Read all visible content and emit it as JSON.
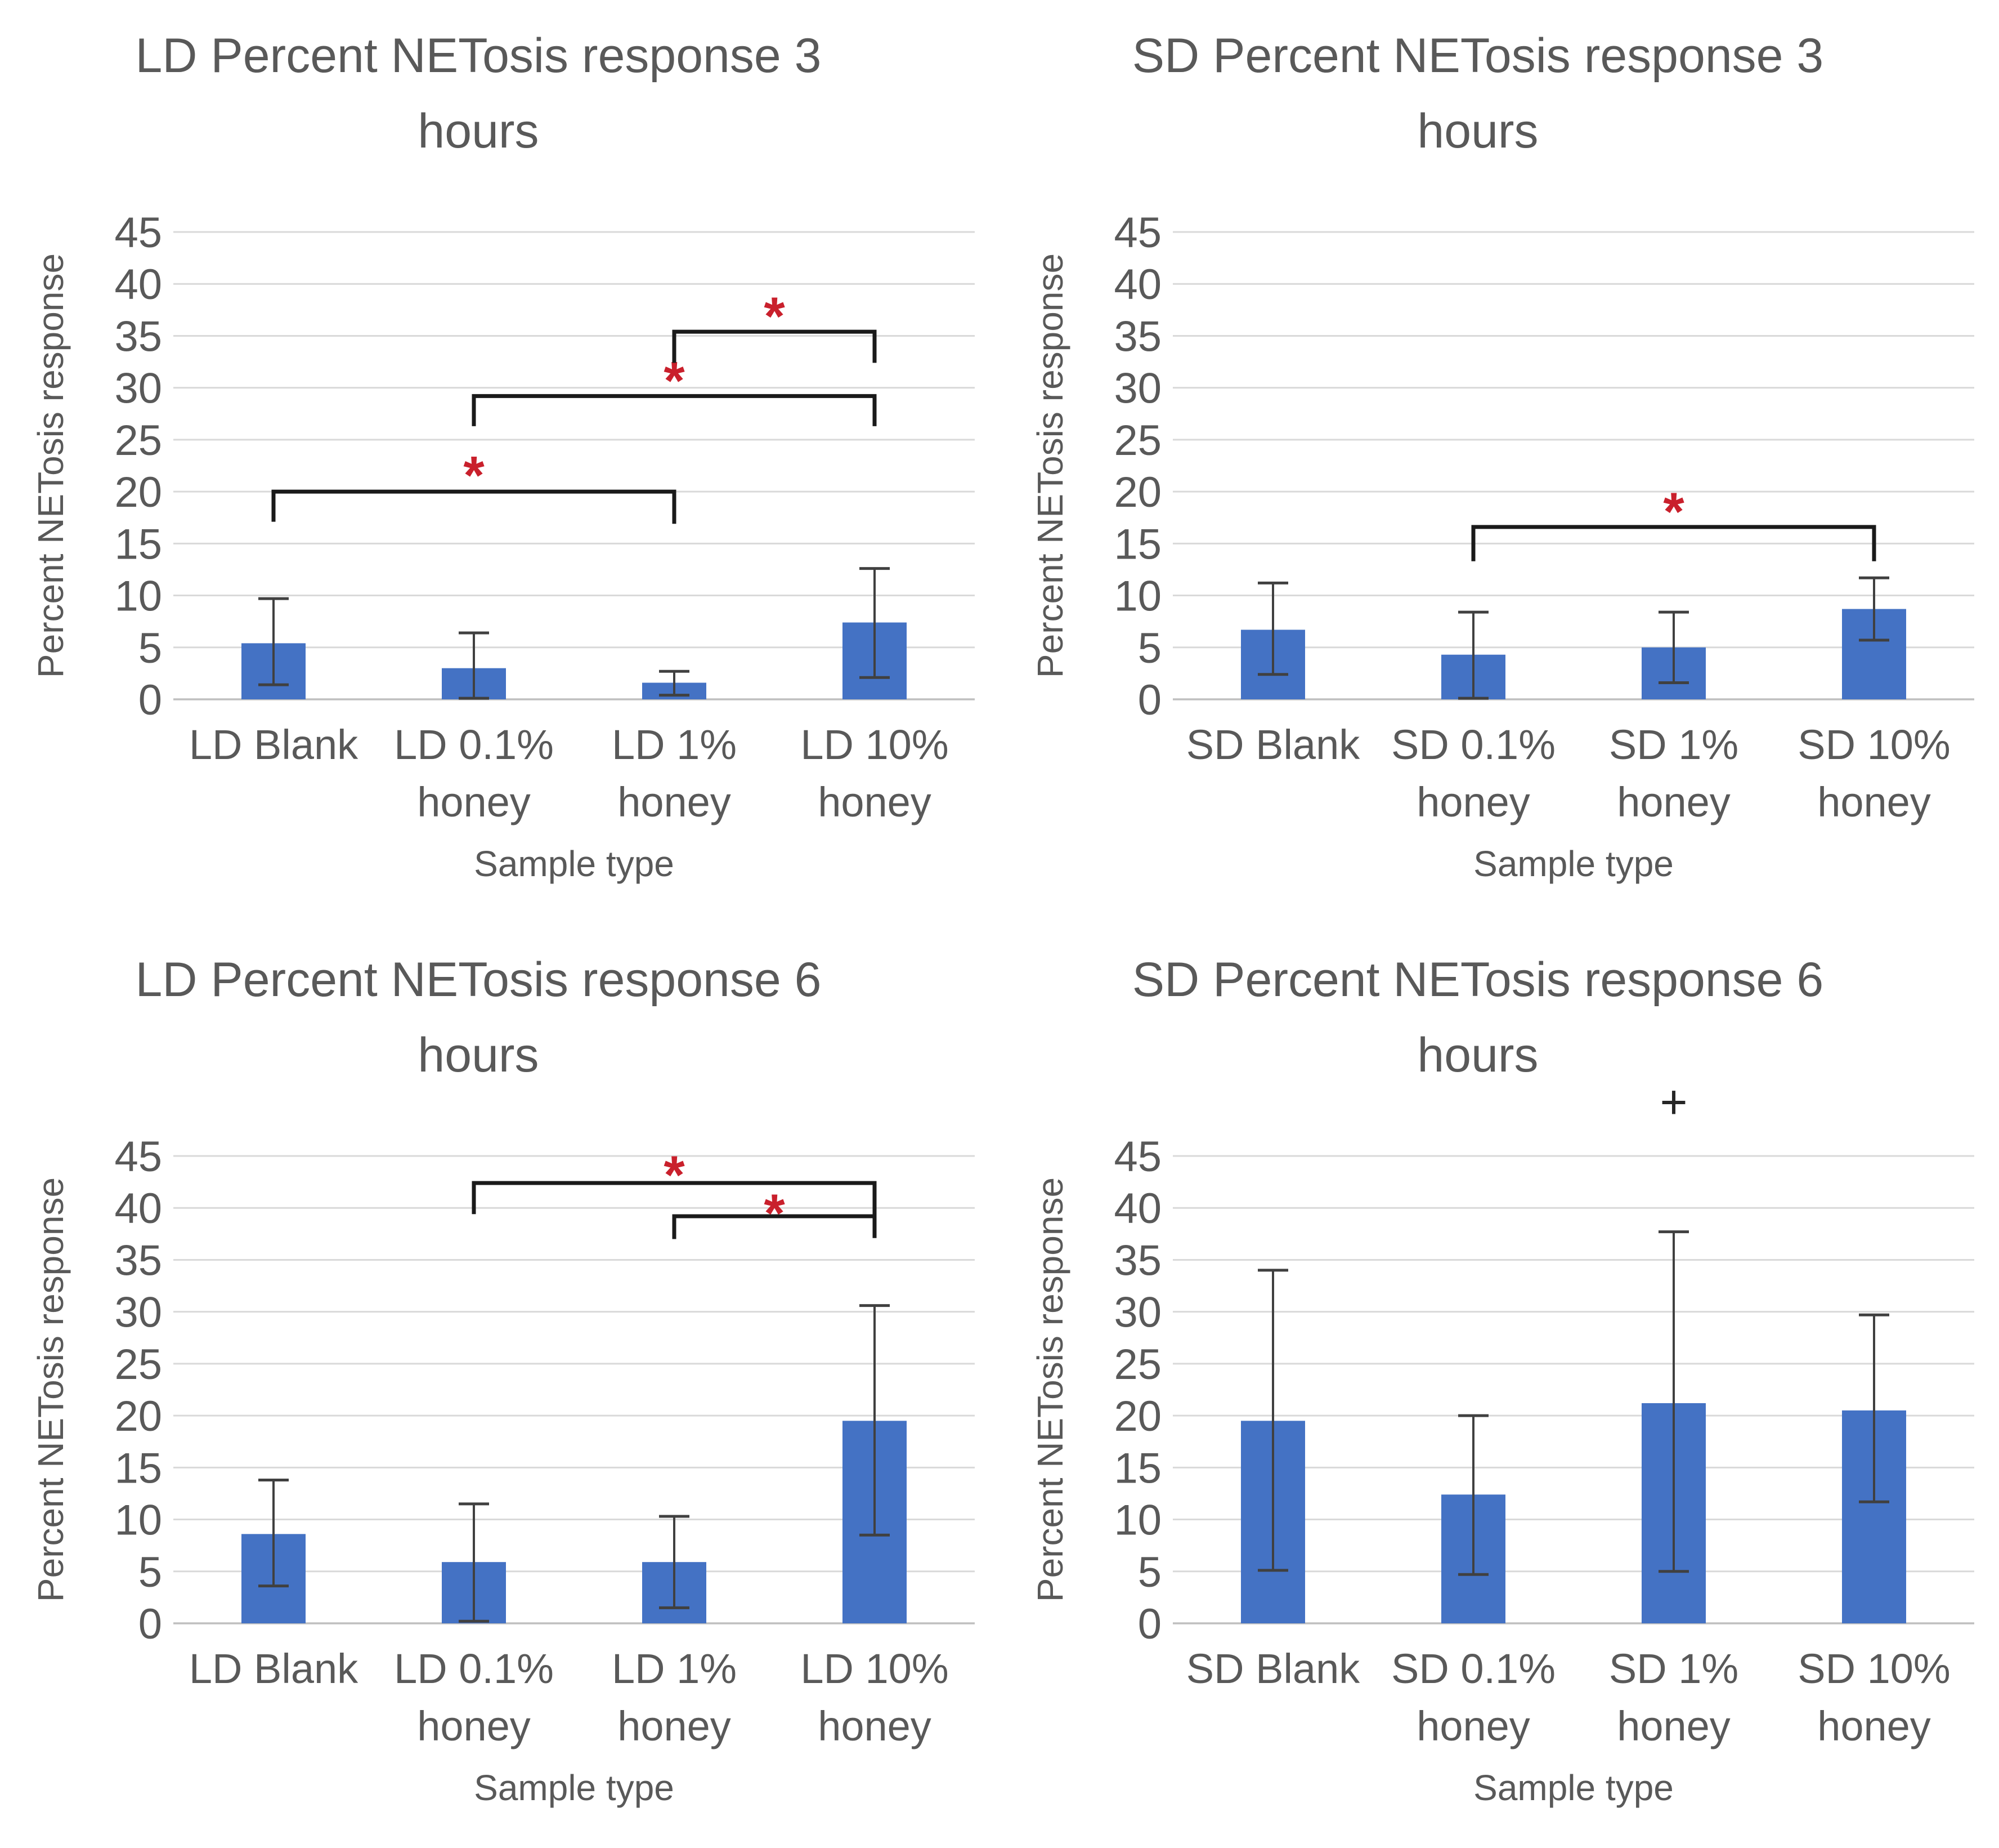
{
  "styles": {
    "background": "#FFFFFF",
    "bar_color": "#4472C4",
    "error_bar_color": "#404040",
    "grid_color": "#D9D9D9",
    "axis_line_color": "#BFBFBF",
    "text_color": "#595959",
    "bracket_color": "#1A1A1A",
    "significance_color": "#C9202C",
    "annotation_color": "#262626"
  },
  "chart_data": [
    {
      "key": "ld-3-hours",
      "type": "bar",
      "title_lines": [
        "LD Percent NETosis response 3",
        "hours"
      ],
      "ylabel": "Percent NETosis response",
      "xlabel": "Sample type",
      "ylim": [
        0,
        45
      ],
      "ytick_step": 5,
      "y_tick_labels": [
        "0",
        "5",
        "10",
        "15",
        "20",
        "25",
        "30",
        "35",
        "40",
        "45"
      ],
      "grid": true,
      "legend": "none",
      "categories": [
        "LD Blank",
        "LD 0.1% honey",
        "LD 1% honey",
        "LD 10% honey"
      ],
      "category_label_lines": [
        [
          "LD Blank"
        ],
        [
          "LD 0.1%",
          "honey"
        ],
        [
          "LD 1%",
          "honey"
        ],
        [
          "LD 10%",
          "honey"
        ]
      ],
      "values": [
        5.4,
        3.0,
        1.6,
        7.4
      ],
      "error_low": [
        1.4,
        0.1,
        0.4,
        2.1
      ],
      "error_high": [
        9.7,
        6.4,
        2.7,
        12.6
      ],
      "significance_brackets": [
        {
          "from_index": 0,
          "to_index": 2,
          "bar_y": 20.0,
          "leg_drop_left": 2.9,
          "leg_drop_right": 3.1,
          "symbol": "*",
          "symbol_y": 22.4
        },
        {
          "from_index": 1,
          "to_index": 3,
          "bar_y": 29.2,
          "leg_drop_left": 2.9,
          "leg_drop_right": 2.9,
          "symbol": "*",
          "symbol_y": 31.5
        },
        {
          "from_index": 2,
          "to_index": 3,
          "bar_y": 35.4,
          "leg_drop_left": 3.0,
          "leg_drop_right": 3.0,
          "symbol": "*",
          "symbol_y": 37.7
        }
      ],
      "annotations": []
    },
    {
      "key": "sd-3-hours",
      "type": "bar",
      "title_lines": [
        "SD Percent NETosis response 3",
        "hours"
      ],
      "ylabel": "Percent NETosis response",
      "xlabel": "Sample type",
      "ylim": [
        0,
        45
      ],
      "ytick_step": 5,
      "y_tick_labels": [
        "0",
        "5",
        "10",
        "15",
        "20",
        "25",
        "30",
        "35",
        "40",
        "45"
      ],
      "grid": true,
      "legend": "none",
      "categories": [
        "SD Blank",
        "SD 0.1% honey",
        "SD 1% honey",
        "SD 10% honey"
      ],
      "category_label_lines": [
        [
          "SD Blank"
        ],
        [
          "SD 0.1%",
          "honey"
        ],
        [
          "SD 1%",
          "honey"
        ],
        [
          "SD 10%",
          "honey"
        ]
      ],
      "values": [
        6.7,
        4.3,
        5.0,
        8.7
      ],
      "error_low": [
        2.4,
        0.1,
        1.6,
        5.7
      ],
      "error_high": [
        11.2,
        8.4,
        8.4,
        11.7
      ],
      "significance_brackets": [
        {
          "from_index": 1,
          "to_index": 3,
          "bar_y": 16.6,
          "leg_drop_left": 3.3,
          "leg_drop_right": 3.3,
          "symbol": "*",
          "symbol_y": 18.9
        }
      ],
      "annotations": []
    },
    {
      "key": "ld-6-hours",
      "type": "bar",
      "title_lines": [
        "LD Percent NETosis response 6",
        "hours"
      ],
      "ylabel": "Percent NETosis response",
      "xlabel": "Sample type",
      "ylim": [
        0,
        45
      ],
      "ytick_step": 5,
      "y_tick_labels": [
        "0",
        "5",
        "10",
        "15",
        "20",
        "25",
        "30",
        "35",
        "40",
        "45"
      ],
      "grid": true,
      "legend": "none",
      "categories": [
        "LD Blank",
        "LD 0.1% honey",
        "LD 1% honey",
        "LD 10% honey"
      ],
      "category_label_lines": [
        [
          "LD Blank"
        ],
        [
          "LD 0.1%",
          "honey"
        ],
        [
          "LD 1%",
          "honey"
        ],
        [
          "LD 10%",
          "honey"
        ]
      ],
      "values": [
        8.6,
        5.9,
        5.9,
        19.5
      ],
      "error_low": [
        3.6,
        0.2,
        1.5,
        8.5
      ],
      "error_high": [
        13.8,
        11.5,
        10.3,
        30.6
      ],
      "significance_brackets": [
        {
          "from_index": 1,
          "to_index": 3,
          "bar_y": 42.4,
          "leg_drop_left": 3.0,
          "leg_drop_right": 5.2,
          "symbol": "*",
          "symbol_y": 44.0
        },
        {
          "from_index": 2,
          "to_index": 3,
          "bar_y": 39.2,
          "leg_drop_left": 2.2,
          "leg_drop_right": 2.1,
          "symbol": "*",
          "symbol_y": 40.3
        }
      ],
      "annotations": []
    },
    {
      "key": "sd-6-hours",
      "type": "bar",
      "title_lines": [
        "SD Percent NETosis response 6",
        "hours"
      ],
      "ylabel": "Percent NETosis response",
      "xlabel": "Sample type",
      "ylim": [
        0,
        45
      ],
      "ytick_step": 5,
      "y_tick_labels": [
        "0",
        "5",
        "10",
        "15",
        "20",
        "25",
        "30",
        "35",
        "40",
        "45"
      ],
      "grid": true,
      "legend": "none",
      "categories": [
        "SD Blank",
        "SD 0.1% honey",
        "SD 1% honey",
        "SD 10% honey"
      ],
      "category_label_lines": [
        [
          "SD Blank"
        ],
        [
          "SD 0.1%",
          "honey"
        ],
        [
          "SD 1%",
          "honey"
        ],
        [
          "SD 10%",
          "honey"
        ]
      ],
      "values": [
        19.5,
        12.4,
        21.2,
        20.5
      ],
      "error_low": [
        5.1,
        4.7,
        5.0,
        11.7
      ],
      "error_high": [
        34.0,
        20.0,
        37.7,
        29.7
      ],
      "significance_brackets": [],
      "annotations": [
        {
          "symbol": "+",
          "category_index": 2,
          "y": 50.0
        }
      ]
    }
  ]
}
